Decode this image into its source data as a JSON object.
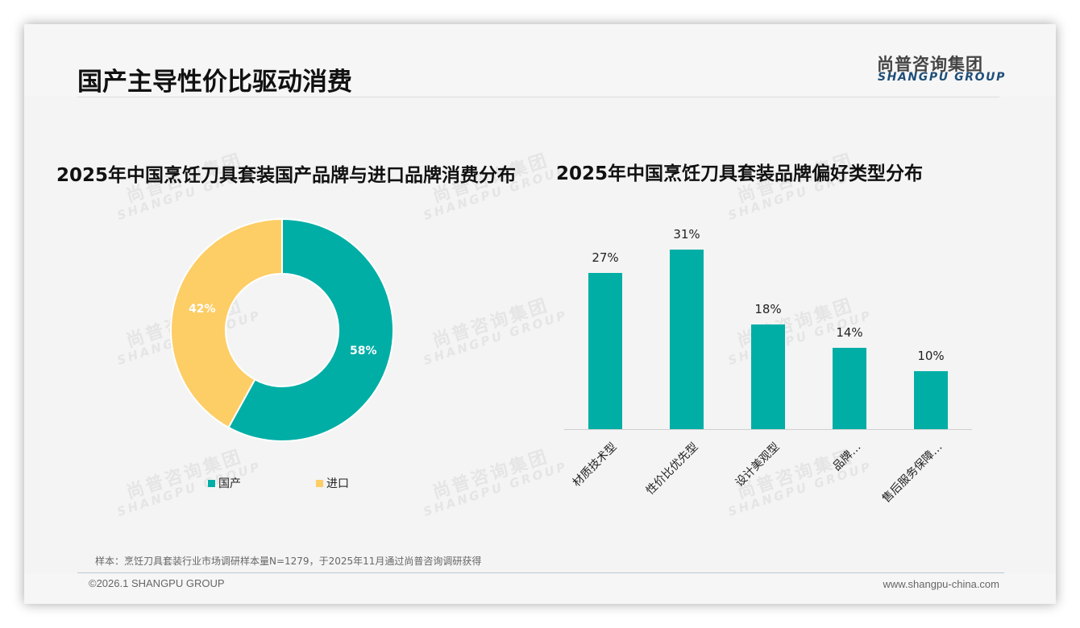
{
  "header": {
    "title": "国产主导性价比驱动消费",
    "logo_cn": "尚普咨询集团",
    "logo_en": "SHANGPU GROUP"
  },
  "watermark": {
    "cn": "尚普咨询集团",
    "en": "SHANGPU GROUP"
  },
  "colors": {
    "domestic": "#00aea6",
    "imported": "#fdcd66",
    "bar": "#00aea6",
    "logo_en": "#1f4e79"
  },
  "donut": {
    "title": "2025年中国烹饪刀具套装国产品牌与进口品牌消费分布",
    "legend": [
      {
        "label": "国产",
        "color": "#00aea6"
      },
      {
        "label": "进口",
        "color": "#fdcd66"
      }
    ],
    "labels": {
      "domestic": "58%",
      "imported": "42%"
    }
  },
  "bar": {
    "title": "2025年中国烹饪刀具套装品牌偏好类型分布",
    "categories": [
      "材质技术型",
      "性价比优先型",
      "设计美观型",
      "品牌…",
      "售后服务保障…"
    ],
    "value_labels": [
      "27%",
      "31%",
      "18%",
      "14%",
      "10%"
    ]
  },
  "chart_data": [
    {
      "type": "pie",
      "subtype": "donut",
      "title": "2025年中国烹饪刀具套装国产品牌与进口品牌消费分布",
      "categories": [
        "国产",
        "进口"
      ],
      "values": [
        58,
        42
      ],
      "unit": "%",
      "colors": [
        "#00aea6",
        "#fdcd66"
      ],
      "legend_position": "bottom"
    },
    {
      "type": "bar",
      "title": "2025年中国烹饪刀具套装品牌偏好类型分布",
      "categories": [
        "材质技术型",
        "性价比优先型",
        "设计美观型",
        "品牌…",
        "售后服务保障…"
      ],
      "values": [
        27,
        31,
        18,
        14,
        10
      ],
      "unit": "%",
      "xlabel": "",
      "ylabel": "",
      "ylim": [
        0,
        31
      ],
      "grid": false,
      "data_labels": true,
      "color": "#00aea6"
    }
  ],
  "footer": {
    "sample_note": "样本：烹饪刀具套装行业市场调研样本量N=1279，于2025年11月通过尚普咨询调研获得",
    "copyright": "©2026.1 SHANGPU GROUP",
    "website": "www.shangpu-china.com"
  }
}
